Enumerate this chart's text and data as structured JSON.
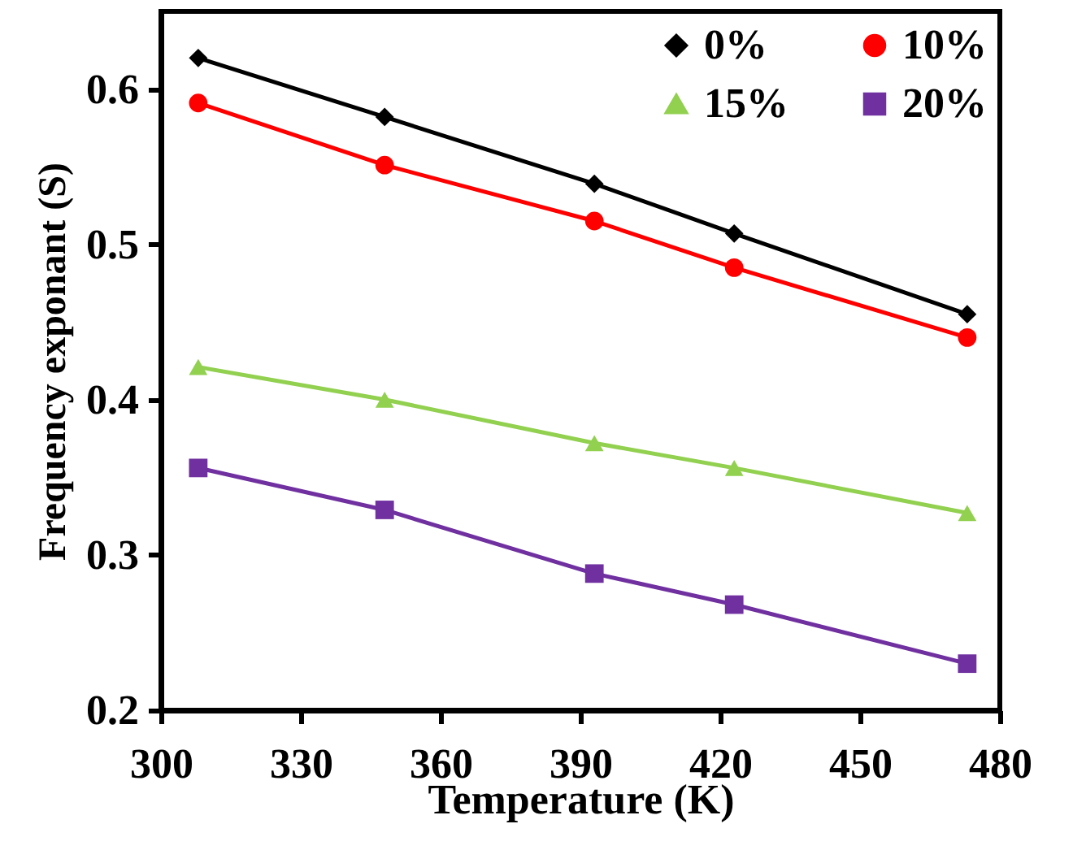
{
  "chart_data": {
    "type": "line",
    "xlabel": "Temperature (K)",
    "ylabel": "Frequency exponant (S)",
    "x": [
      308,
      348,
      393,
      423,
      473
    ],
    "series": [
      {
        "name": "0%",
        "color": "#000000",
        "marker": "diamond",
        "values": [
          0.62,
          0.582,
          0.539,
          0.507,
          0.455
        ]
      },
      {
        "name": "10%",
        "color": "#ff0000",
        "marker": "circle",
        "values": [
          0.591,
          0.551,
          0.515,
          0.485,
          0.44
        ]
      },
      {
        "name": "15%",
        "color": "#92d050",
        "marker": "triangle",
        "values": [
          0.421,
          0.4,
          0.372,
          0.356,
          0.327
        ]
      },
      {
        "name": "20%",
        "color": "#7030a0",
        "marker": "square",
        "values": [
          0.356,
          0.329,
          0.288,
          0.268,
          0.23
        ]
      }
    ],
    "xlim": [
      300,
      480
    ],
    "xticks": [
      300,
      330,
      360,
      390,
      420,
      450,
      480
    ],
    "ylim": [
      0.2,
      0.65
    ],
    "yticks": [
      0.2,
      0.3,
      0.4,
      0.5,
      0.6
    ],
    "grid": false,
    "legend": "top right"
  }
}
